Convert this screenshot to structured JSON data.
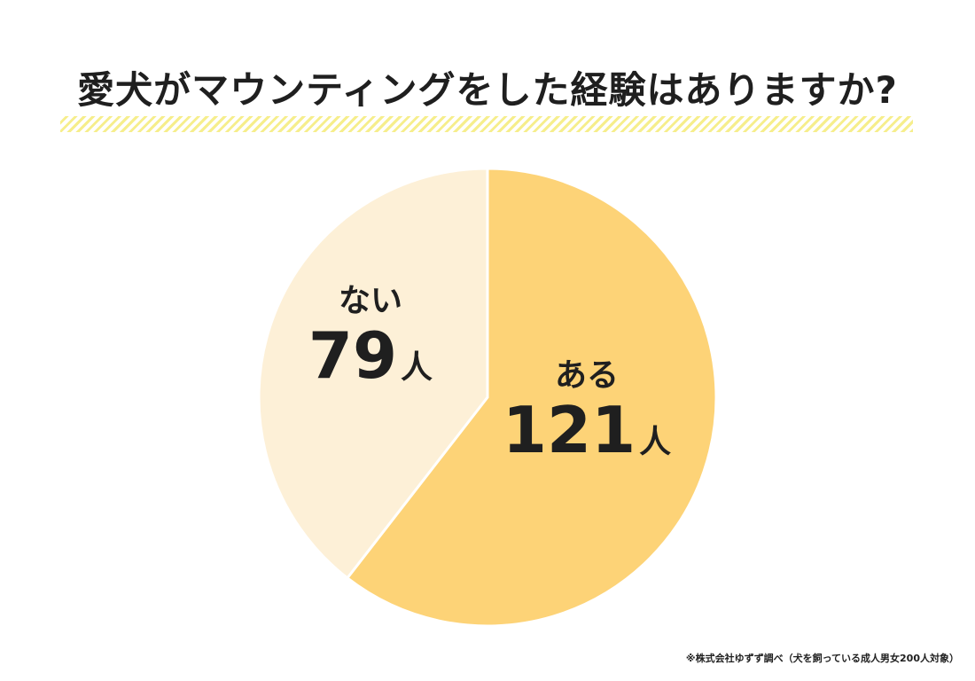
{
  "chart_data": {
    "type": "pie",
    "title": "愛犬がマウンティングをした経験はありますか?",
    "categories": [
      "ある",
      "ない"
    ],
    "values": [
      121,
      79
    ],
    "unit": "人",
    "value_labels": [
      "121",
      "79"
    ],
    "colors": [
      "#fdd377",
      "#fdf0d7"
    ],
    "start_angle_deg": 0,
    "direction": "clockwise"
  },
  "source_note": "※株式会社ゆずず調べ（犬を飼っている成人男女200人対象）"
}
